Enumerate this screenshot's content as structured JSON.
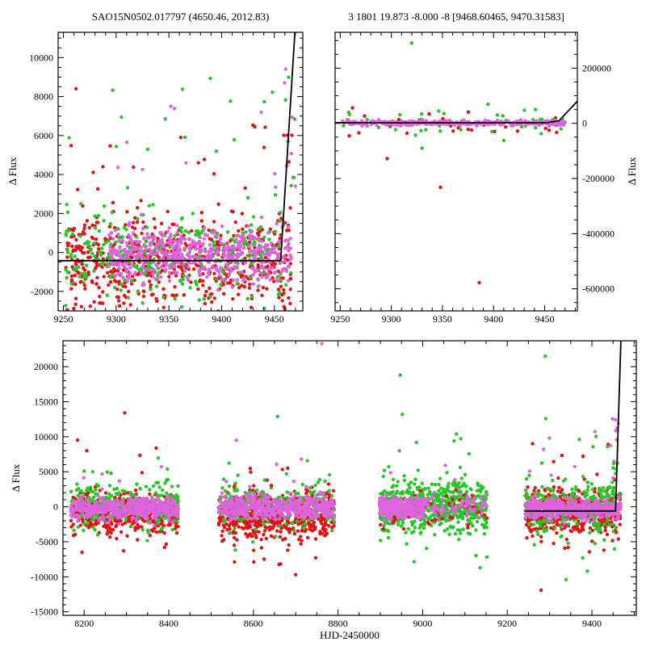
{
  "render_seed": 12,
  "colors": {
    "red": "#e01212",
    "green": "#26c626",
    "violet": "#df63df",
    "line": "#000000"
  },
  "chart_data": [
    {
      "id": "panel1",
      "type": "scatter",
      "title": "SAO15N0502.017797 (4650.46, 2012.83)",
      "xlabel": "",
      "ylabel": "Δ Flux",
      "ylabel_side": "left",
      "x_range": [
        9245,
        9477
      ],
      "y_range": [
        -3000,
        11300
      ],
      "x_ticks": [
        9250,
        9300,
        9350,
        9400,
        9450
      ],
      "y_ticks": [
        -2000,
        0,
        2000,
        4000,
        6000,
        8000,
        10000
      ],
      "x_minor": 10,
      "y_minor": 500,
      "legend": "off",
      "grid": "off",
      "clusters": [
        {
          "color": "red",
          "n": 620,
          "x": [
            9252,
            9466
          ],
          "y_mu": -500,
          "y_sigma": 1100
        },
        {
          "color": "green",
          "n": 330,
          "x": [
            9252,
            9466
          ],
          "y_mu": -100,
          "y_sigma": 1000
        },
        {
          "color": "red",
          "n": 18,
          "x": [
            9253,
            9462
          ],
          "y_uniform": [
            1800,
            6800
          ]
        },
        {
          "color": "green",
          "n": 16,
          "x": [
            9253,
            9462
          ],
          "y_uniform": [
            1800,
            9700
          ]
        },
        {
          "color": "violet",
          "n": 520,
          "x": [
            9293,
            9466
          ],
          "y_mu": -100,
          "y_sigma": 650
        },
        {
          "color": "violet",
          "n": 10,
          "x": [
            9295,
            9462
          ],
          "y_uniform": [
            1500,
            7400
          ]
        },
        {
          "color": "violet",
          "n": 8,
          "x": [
            9458,
            9470
          ],
          "y_uniform": [
            2500,
            10400
          ]
        },
        {
          "color": "green",
          "n": 6,
          "x": [
            9458,
            9470
          ],
          "y_uniform": [
            2500,
            9500
          ]
        },
        {
          "color": "red",
          "n": 5,
          "x": [
            9458,
            9470
          ],
          "y_uniform": [
            2000,
            6500
          ]
        }
      ],
      "outliers": [
        [
          9262,
          8400,
          "red"
        ],
        [
          9305,
          6950,
          "green"
        ],
        [
          9352,
          7500,
          "violet"
        ],
        [
          9330,
          5300,
          "green"
        ],
        [
          9395,
          5200,
          "green"
        ],
        [
          9378,
          4600,
          "red"
        ]
      ],
      "line": [
        [
          9245,
          -420
        ],
        [
          9456,
          -420
        ],
        [
          9469.5,
          11300
        ]
      ]
    },
    {
      "id": "panel2",
      "type": "scatter",
      "title": "3 1801 19.873 -8.000 -8 [9468.60465, 9470.31583]",
      "xlabel": "",
      "ylabel": "Δ Flux",
      "ylabel_side": "right",
      "x_range": [
        9245,
        9482
      ],
      "y_range": [
        -680000,
        330000
      ],
      "x_ticks": [
        9250,
        9300,
        9350,
        9400,
        9450
      ],
      "y_ticks": [
        -600000,
        -400000,
        -200000,
        0,
        200000
      ],
      "x_minor": 10,
      "y_minor": 50000,
      "legend": "off",
      "grid": "off",
      "clusters": [
        {
          "color": "red",
          "n": 34,
          "x": [
            9252,
            9468
          ],
          "y_mu": 0,
          "y_sigma": 26000
        },
        {
          "color": "green",
          "n": 40,
          "x": [
            9252,
            9468
          ],
          "y_mu": 4000,
          "y_sigma": 22000
        },
        {
          "color": "violet",
          "n": 330,
          "x": [
            9252,
            9470
          ],
          "y_mu": 2000,
          "y_sigma": 5000
        }
      ],
      "outliers": [
        [
          9320,
          291000,
          "green"
        ],
        [
          9386,
          -578000,
          "red"
        ],
        [
          9348,
          -232000,
          "red"
        ],
        [
          9296,
          -128000,
          "red"
        ],
        [
          9330,
          -90000,
          "green"
        ],
        [
          9262,
          56000,
          "red"
        ],
        [
          9441,
          50000,
          "green"
        ],
        [
          9410,
          -62000,
          "green"
        ]
      ],
      "line": [
        [
          9245,
          2000
        ],
        [
          9452,
          2000
        ],
        [
          9464,
          9000
        ],
        [
          9482,
          80000
        ]
      ]
    },
    {
      "id": "panel3",
      "type": "scatter",
      "title": "",
      "xlabel": "HJD-2450000",
      "ylabel": "Δ Flux",
      "ylabel_side": "left",
      "x_range": [
        8150,
        9505
      ],
      "y_range": [
        -15500,
        23700
      ],
      "x_ticks": [
        8200,
        8400,
        8600,
        8800,
        9000,
        9200,
        9400
      ],
      "y_ticks": [
        -15000,
        -10000,
        -5000,
        0,
        5000,
        10000,
        15000,
        20000
      ],
      "x_minor": 50,
      "y_minor": 1000,
      "legend": "off",
      "grid": "off",
      "clusters": [
        {
          "color": "red",
          "n": 520,
          "x": [
            8168,
            8422
          ],
          "y_mu": -800,
          "y_sigma": 1300
        },
        {
          "color": "green",
          "n": 300,
          "x": [
            8168,
            8422
          ],
          "y_mu": 100,
          "y_sigma": 1400
        },
        {
          "color": "red",
          "n": 6,
          "x": [
            8175,
            8410
          ],
          "y_uniform": [
            3000,
            9800
          ]
        },
        {
          "color": "green",
          "n": 7,
          "x": [
            8175,
            8410
          ],
          "y_uniform": [
            3000,
            7600
          ]
        },
        {
          "color": "red",
          "n": 4,
          "x": [
            8175,
            8410
          ],
          "y_uniform": [
            -6800,
            -3800
          ]
        },
        {
          "color": "green",
          "n": 3,
          "x": [
            8175,
            8410
          ],
          "y_uniform": [
            -5500,
            -3300
          ]
        },
        {
          "color": "violet",
          "n": 430,
          "x": [
            8168,
            8422
          ],
          "y_mu": -200,
          "y_sigma": 750
        },
        {
          "color": "violet",
          "n": 4,
          "x": [
            8175,
            8410
          ],
          "y_uniform": [
            2500,
            7400
          ]
        },
        {
          "color": "red",
          "n": 560,
          "x": [
            8518,
            8792
          ],
          "y_mu": -1100,
          "y_sigma": 1700
        },
        {
          "color": "green",
          "n": 230,
          "x": [
            8518,
            8792
          ],
          "y_mu": 200,
          "y_sigma": 1500
        },
        {
          "color": "red",
          "n": 5,
          "x": [
            8525,
            8785
          ],
          "y_uniform": [
            2800,
            6400
          ]
        },
        {
          "color": "green",
          "n": 5,
          "x": [
            8525,
            8785
          ],
          "y_uniform": [
            3000,
            7700
          ]
        },
        {
          "color": "red",
          "n": 6,
          "x": [
            8525,
            8785
          ],
          "y_uniform": [
            -8500,
            -4500
          ]
        },
        {
          "color": "green",
          "n": 3,
          "x": [
            8525,
            8785
          ],
          "y_uniform": [
            -7800,
            -4000
          ]
        },
        {
          "color": "violet",
          "n": 470,
          "x": [
            8518,
            8792
          ],
          "y_mu": 0,
          "y_sigma": 850
        },
        {
          "color": "violet",
          "n": 5,
          "x": [
            8525,
            8785
          ],
          "y_uniform": [
            2500,
            9600
          ]
        },
        {
          "color": "green",
          "n": 620,
          "x": [
            8898,
            9152
          ],
          "y_mu": 0,
          "y_sigma": 1700
        },
        {
          "color": "red",
          "n": 70,
          "x": [
            8898,
            9152
          ],
          "y_mu": -300,
          "y_sigma": 1400
        },
        {
          "color": "green",
          "n": 6,
          "x": [
            8905,
            9145
          ],
          "y_uniform": [
            3000,
            9800
          ]
        },
        {
          "color": "green",
          "n": 5,
          "x": [
            8905,
            9145
          ],
          "y_uniform": [
            -9000,
            -3500
          ]
        },
        {
          "color": "violet",
          "n": 330,
          "x": [
            8898,
            9005
          ],
          "y_mu": 0,
          "y_sigma": 700
        },
        {
          "color": "violet",
          "n": 70,
          "x": [
            9005,
            9152
          ],
          "y_mu": 0,
          "y_sigma": 900
        },
        {
          "color": "violet",
          "n": 3,
          "x": [
            8905,
            9145
          ],
          "y_uniform": [
            2500,
            6000
          ]
        },
        {
          "color": "red",
          "n": 480,
          "x": [
            9242,
            9468
          ],
          "y_mu": -700,
          "y_sigma": 1600
        },
        {
          "color": "green",
          "n": 290,
          "x": [
            9242,
            9468
          ],
          "y_mu": 0,
          "y_sigma": 1800
        },
        {
          "color": "red",
          "n": 6,
          "x": [
            9248,
            9462
          ],
          "y_uniform": [
            2800,
            10500
          ]
        },
        {
          "color": "green",
          "n": 6,
          "x": [
            9248,
            9462
          ],
          "y_uniform": [
            3000,
            13500
          ]
        },
        {
          "color": "red",
          "n": 5,
          "x": [
            9248,
            9462
          ],
          "y_uniform": [
            -8000,
            -4200
          ]
        },
        {
          "color": "green",
          "n": 4,
          "x": [
            9248,
            9462
          ],
          "y_uniform": [
            -10500,
            -4000
          ]
        },
        {
          "color": "violet",
          "n": 480,
          "x": [
            9242,
            9468
          ],
          "y_mu": -300,
          "y_sigma": 650
        },
        {
          "color": "violet",
          "n": 6,
          "x": [
            9248,
            9462
          ],
          "y_uniform": [
            2500,
            13500
          ]
        },
        {
          "color": "violet",
          "n": 8,
          "x": [
            9448,
            9470
          ],
          "y_uniform": [
            3000,
            14000
          ]
        },
        {
          "color": "green",
          "n": 5,
          "x": [
            9448,
            9470
          ],
          "y_uniform": [
            3000,
            13000
          ]
        }
      ],
      "outliers": [
        [
          8296,
          13400,
          "red"
        ],
        [
          8762,
          23300,
          "violet"
        ],
        [
          8657,
          12900,
          "green"
        ],
        [
          8700,
          -9700,
          "red"
        ],
        [
          8560,
          9500,
          "violet"
        ],
        [
          8947,
          18800,
          "green"
        ],
        [
          8952,
          13200,
          "green"
        ],
        [
          9080,
          10400,
          "green"
        ],
        [
          9290,
          21500,
          "green"
        ],
        [
          9339,
          -10400,
          "green"
        ],
        [
          9280,
          -11900,
          "red"
        ],
        [
          9300,
          9800,
          "violet"
        ]
      ],
      "line": [
        [
          9242,
          -600
        ],
        [
          9456,
          -600
        ],
        [
          9468.5,
          23700
        ]
      ]
    }
  ]
}
